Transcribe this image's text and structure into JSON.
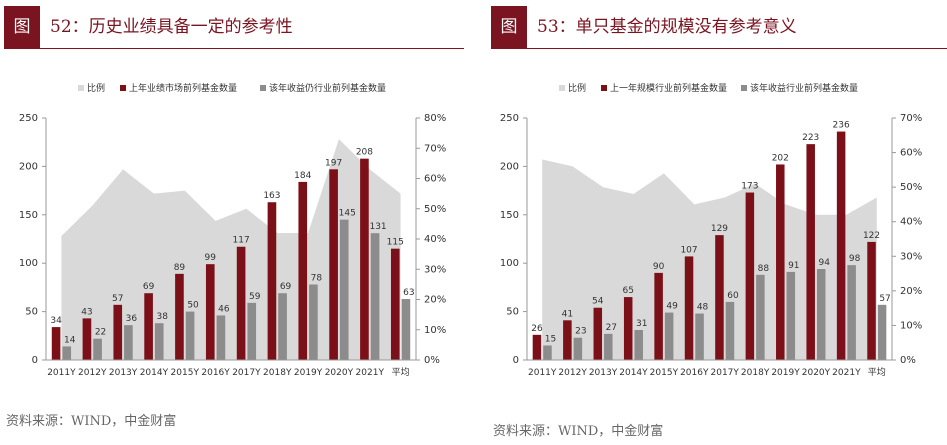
{
  "colors": {
    "accent": "#7a1420",
    "dark_bar": "#7c1018",
    "gray_bar": "#8c8c8c",
    "area": "#d9d9d9"
  },
  "panels": [
    {
      "tag": "图",
      "title": "52：历史业绩具备一定的参考性",
      "source": "资料来源：WIND，中金财富"
    },
    {
      "tag": "图",
      "title": "53：单只基金的规模没有参考意义",
      "source": "资料来源：WIND，中金财富"
    }
  ],
  "chart_data": [
    {
      "type": "bar",
      "categories": [
        "2011Y",
        "2012Y",
        "2013Y",
        "2014Y",
        "2015Y",
        "2016Y",
        "2017Y",
        "2018Y",
        "2019Y",
        "2020Y",
        "2021Y",
        "平均"
      ],
      "series": [
        {
          "name": "比例",
          "kind": "area",
          "axis": "right",
          "values": [
            0.41,
            0.51,
            0.63,
            0.55,
            0.56,
            0.46,
            0.5,
            0.42,
            0.42,
            0.73,
            0.63,
            0.55
          ]
        },
        {
          "name": "上年业绩市场前列基金数量",
          "kind": "bar",
          "axis": "left",
          "values": [
            34,
            43,
            57,
            69,
            89,
            99,
            117,
            163,
            184,
            197,
            208,
            115
          ]
        },
        {
          "name": "该年收益仍行业前列基金数量",
          "kind": "bar",
          "axis": "left",
          "values": [
            14,
            22,
            36,
            38,
            50,
            46,
            59,
            69,
            78,
            145,
            131,
            63
          ]
        }
      ],
      "y_left": {
        "min": 0,
        "max": 250,
        "ticks": [
          "0",
          "50",
          "100",
          "150",
          "200",
          "250"
        ]
      },
      "y_right": {
        "min": 0,
        "max": 0.8,
        "ticks": [
          "0%",
          "10%",
          "20%",
          "30%",
          "40%",
          "50%",
          "60%",
          "70%",
          "80%"
        ]
      },
      "legend": "top",
      "grid": false
    },
    {
      "type": "bar",
      "categories": [
        "2011Y",
        "2012Y",
        "2013Y",
        "2014Y",
        "2015Y",
        "2016Y",
        "2017Y",
        "2018Y",
        "2019Y",
        "2020Y",
        "2021Y",
        "平均"
      ],
      "series": [
        {
          "name": "比例",
          "kind": "area",
          "axis": "right",
          "values": [
            0.58,
            0.56,
            0.5,
            0.48,
            0.54,
            0.45,
            0.47,
            0.51,
            0.45,
            0.42,
            0.42,
            0.47
          ]
        },
        {
          "name": "上一年规模行业前列基金数量",
          "kind": "bar",
          "axis": "left",
          "values": [
            26,
            41,
            54,
            65,
            90,
            107,
            129,
            173,
            202,
            223,
            236,
            122
          ]
        },
        {
          "name": "该年收益行业前列基金数量",
          "kind": "bar",
          "axis": "left",
          "values": [
            15,
            23,
            27,
            31,
            49,
            48,
            60,
            88,
            91,
            94,
            98,
            57
          ]
        }
      ],
      "y_left": {
        "min": 0,
        "max": 250,
        "ticks": [
          "0",
          "50",
          "100",
          "150",
          "200",
          "250"
        ]
      },
      "y_right": {
        "min": 0,
        "max": 0.7,
        "ticks": [
          "0%",
          "10%",
          "20%",
          "30%",
          "40%",
          "50%",
          "60%",
          "70%"
        ]
      },
      "legend": "top",
      "grid": false
    }
  ]
}
